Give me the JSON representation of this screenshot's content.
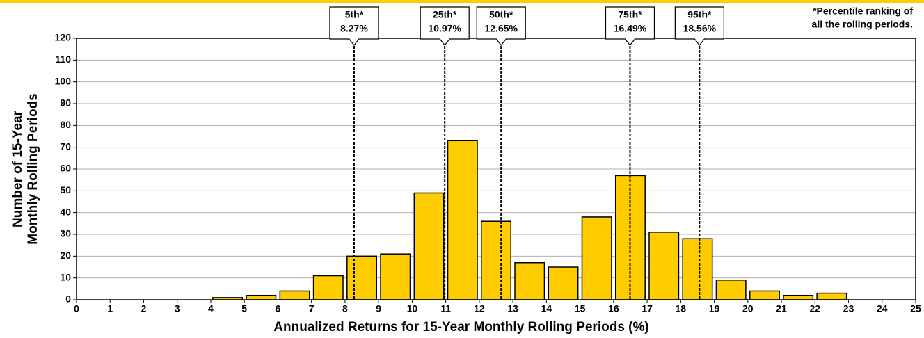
{
  "chart_data": {
    "type": "histogram",
    "x_label": "Annualized Returns for 15-Year Monthly Rolling Periods (%)",
    "y_label": [
      "Number of 15-Year",
      "Monthly Rolling Periods"
    ],
    "note": [
      "*Percentile ranking of",
      "all the rolling periods."
    ],
    "bins": [
      0,
      1,
      2,
      3,
      4,
      5,
      6,
      7,
      8,
      9,
      10,
      11,
      12,
      13,
      14,
      15,
      16,
      17,
      18,
      19,
      20,
      21,
      22,
      23,
      24,
      25
    ],
    "values": [
      0,
      0,
      0,
      0,
      1,
      2,
      4,
      11,
      20,
      21,
      49,
      73,
      36,
      17,
      15,
      38,
      57,
      31,
      28,
      9,
      4,
      2,
      3,
      0,
      0
    ],
    "color": "#ffcc00",
    "xlim": [
      0,
      25
    ],
    "xticks": [
      0,
      1,
      2,
      3,
      4,
      5,
      6,
      7,
      8,
      9,
      10,
      11,
      12,
      13,
      14,
      15,
      16,
      17,
      18,
      19,
      20,
      21,
      22,
      23,
      24,
      25
    ],
    "ylim": [
      0,
      120
    ],
    "yticks": [
      0,
      10,
      20,
      30,
      40,
      50,
      60,
      70,
      80,
      90,
      100,
      110,
      120
    ],
    "grid": true,
    "percentiles": {
      "names": [
        "5th*",
        "25th*",
        "50th*",
        "75th*",
        "95th*"
      ],
      "values": [
        8.27,
        10.97,
        12.65,
        16.49,
        18.56
      ],
      "value_labels": [
        "8.27%",
        "10.97%",
        "12.65%",
        "16.49%",
        "18.56%"
      ]
    }
  }
}
